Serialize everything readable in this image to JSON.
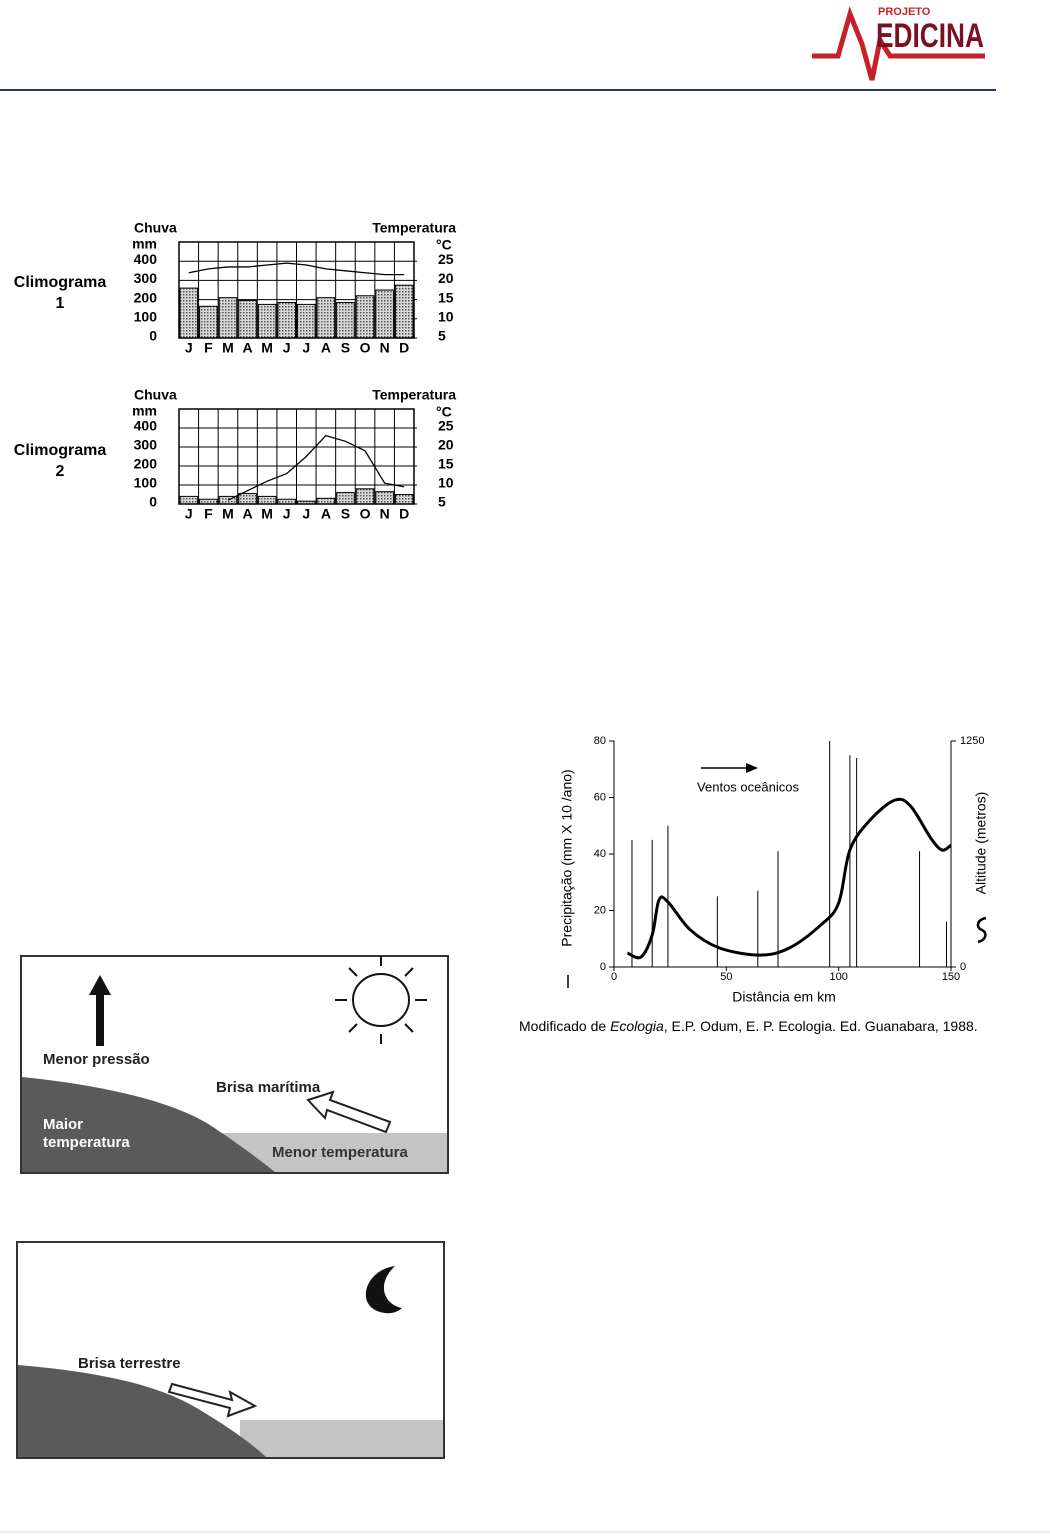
{
  "header": {
    "logo_top": "PROJETO",
    "logo_main": "EDICINA"
  },
  "chart_data": [
    {
      "type": "climogram",
      "title": [
        "Climograma",
        "1"
      ],
      "y_label": "Chuva",
      "y2_label": "Temperatura",
      "y_unit": "mm",
      "y2_unit": "°C",
      "categories": [
        "J",
        "F",
        "M",
        "A",
        "M",
        "J",
        "J",
        "A",
        "S",
        "O",
        "N",
        "D"
      ],
      "series": [
        {
          "color": "#8a8a8a",
          "values": [
            260,
            165,
            210,
            195,
            175,
            185,
            175,
            210,
            185,
            220,
            250,
            275
          ]
        },
        {
          "color": "#000000",
          "axis": "y2",
          "values": [
            22,
            23,
            23.5,
            23.5,
            24,
            24.5,
            24,
            23,
            22.5,
            22,
            21.5,
            21.5
          ]
        }
      ],
      "ylim": [
        0,
        500
      ],
      "yticks": [
        0,
        100,
        200,
        300,
        400
      ],
      "y2lim": [
        5,
        30
      ],
      "y2ticks": [
        5,
        10,
        15,
        20,
        25
      ],
      "grid": true
    },
    {
      "type": "climogram",
      "title": [
        "Climograma",
        "2"
      ],
      "y_label": "Chuva",
      "y2_label": "Temperatura",
      "y_unit": "mm",
      "y2_unit": "°C",
      "categories": [
        "J",
        "F",
        "M",
        "A",
        "M",
        "J",
        "J",
        "A",
        "S",
        "O",
        "N",
        "D"
      ],
      "series": [
        {
          "color": "#8a8a8a",
          "values": [
            40,
            25,
            40,
            55,
            40,
            25,
            15,
            30,
            60,
            80,
            65,
            50
          ]
        },
        {
          "color": "#000000",
          "axis": "y2",
          "values": [
            null,
            null,
            6,
            8.5,
            11,
            13,
            17.5,
            23,
            21.5,
            19,
            10.5,
            9.5
          ]
        }
      ],
      "ylim": [
        0,
        500
      ],
      "yticks": [
        0,
        100,
        200,
        300,
        400
      ],
      "y2lim": [
        5,
        30
      ],
      "y2ticks": [
        5,
        10,
        15,
        20,
        25
      ],
      "grid": true
    },
    {
      "type": "precipitation_altitude",
      "y_label": "Precipitação (mm X 10 /ano)",
      "y2_label": "Altitude (metros)",
      "x_label": "Distância em km",
      "annotation": "Ventos oceânicos",
      "caption": [
        "Modificado de ",
        "Ecologia",
        ", E.P. Odum, E. P. Ecologia. Ed. Guanabara, 1988."
      ],
      "series": [
        {
          "style": "vline",
          "color": "#000000",
          "x": [
            8,
            17,
            24,
            46,
            64,
            73,
            96,
            105,
            108,
            136,
            148
          ],
          "values": [
            45,
            45,
            50,
            25,
            27,
            41,
            80,
            75,
            74,
            41,
            16
          ]
        },
        {
          "style": "smooth",
          "color": "#000000",
          "axis": "y2",
          "x": [
            6,
            12,
            17,
            20,
            24,
            34,
            47,
            65,
            78,
            92,
            100,
            105,
            114,
            125,
            132,
            141,
            146,
            150
          ],
          "values": [
            77,
            55,
            177,
            370,
            360,
            205,
            105,
            66,
            105,
            232,
            354,
            647,
            813,
            923,
            890,
            713,
            647,
            674
          ]
        }
      ],
      "xlim": [
        0,
        150
      ],
      "xticks": [
        0,
        50,
        100,
        150
      ],
      "ylim": [
        0,
        80
      ],
      "yticks": [
        0,
        20,
        40,
        60,
        80
      ],
      "y2lim": [
        0,
        1250
      ],
      "y2ticks": [
        0,
        1250
      ]
    }
  ],
  "diagrams": [
    {
      "labels": [
        "Menor pressão",
        "Brisa marítima",
        "Maior",
        "temperatura",
        "Menor temperatura"
      ]
    },
    {
      "labels": [
        "Brisa terrestre"
      ]
    }
  ]
}
